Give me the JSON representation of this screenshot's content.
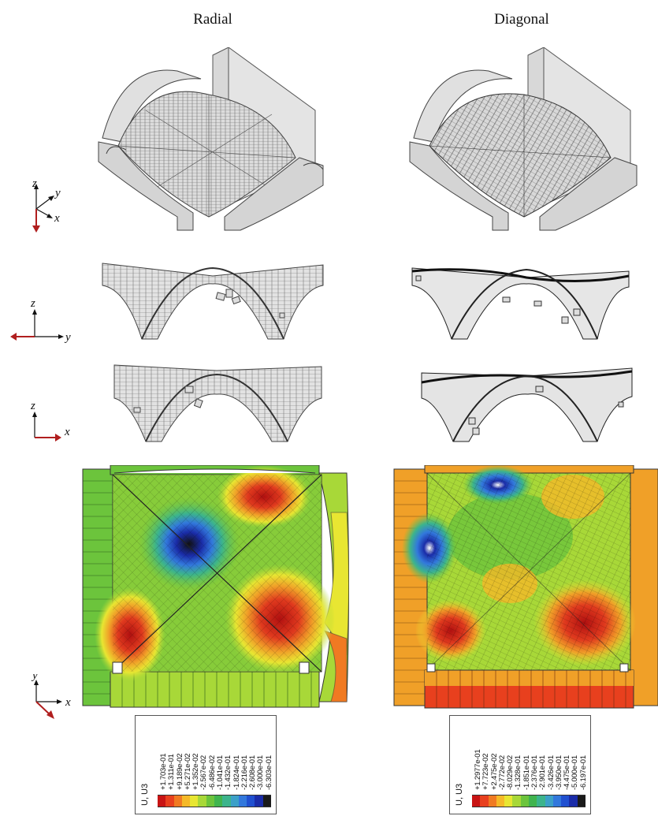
{
  "titles": {
    "radial": "Radial",
    "diagonal": "Diagonal"
  },
  "axes": {
    "iso": {
      "z": "z",
      "y": "y",
      "x": "x"
    },
    "front": {
      "z": "z",
      "y": "y"
    },
    "side": {
      "z": "z",
      "x": "x"
    },
    "plan": {
      "y": "y",
      "x": "x"
    }
  },
  "legend_radial": {
    "variable": "U, U3",
    "values": [
      "+1.703e-01",
      "+1.311e-01",
      "+9.189e-02",
      "+5.271e-02",
      "+1.352e-02",
      "-2.567e-02",
      "-6.486e-02",
      "-1.041e-01",
      "-1.432e-01",
      "-1.824e-01",
      "-2.216e-01",
      "-2.608e-01",
      "-3.000e-01",
      "-6.303e-01"
    ],
    "colors": [
      "#c81414",
      "#e8401e",
      "#f07a22",
      "#f5b928",
      "#e8e632",
      "#a8d838",
      "#6cc43c",
      "#40b44e",
      "#3cb48c",
      "#3ca0c8",
      "#3278dc",
      "#2050d0",
      "#1a2ca8",
      "#1a1a1a"
    ]
  },
  "legend_diagonal": {
    "variable": "U, U3",
    "values": [
      "+1.2977e-01",
      "+7.723e-02",
      "+2.475e-02",
      "-2.772e-02",
      "-8.029e-02",
      "-1.328e-01",
      "-1.851e-01",
      "-2.376e-01",
      "-2.901e-01",
      "-3.426e-01",
      "-3.950e-01",
      "-4.475e-01",
      "-5.000e-01",
      "-6.197e-01"
    ],
    "colors": [
      "#c81414",
      "#e8401e",
      "#f07a22",
      "#f5b928",
      "#e8e632",
      "#a8d838",
      "#6cc43c",
      "#40b44e",
      "#3cb48c",
      "#3ca0c8",
      "#3278dc",
      "#2050d0",
      "#1a2ca8",
      "#1a1a1a"
    ]
  }
}
